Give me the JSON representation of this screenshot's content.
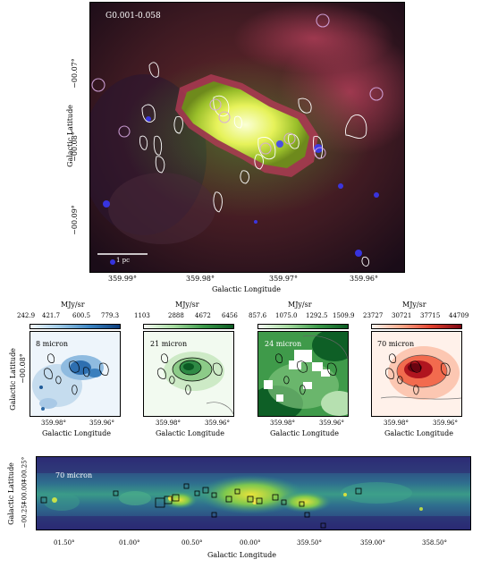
{
  "top_panel": {
    "title": "G0.001-0.058",
    "scale_bar_label": "1 pc",
    "ylabel": "Galactic Latitude",
    "xlabel": "Galactic Longitude",
    "yticks": [
      "−00.07°",
      "−00.08°",
      "−00.09°"
    ],
    "xticks": [
      "359.99°",
      "359.98°",
      "359.97°",
      "359.96°"
    ]
  },
  "middle_panels": {
    "ylabel": "Galactic Latitude",
    "ytick": "−00.08°",
    "unit": "MJy/sr",
    "xticks": [
      "359.98°",
      "359.96°"
    ],
    "xlabel": "Galactic Longitude",
    "panels": [
      {
        "label": "8 micron",
        "ticks": [
          "242.9",
          "421.7",
          "600.5",
          "779.3"
        ],
        "cmap_start": "#f3f8fd",
        "cmap_end": "#0c3d7a"
      },
      {
        "label": "21 micron",
        "ticks": [
          "1103",
          "2888",
          "4672",
          "6456"
        ],
        "cmap_start": "#f5fbf3",
        "cmap_end": "#0b5a23"
      },
      {
        "label": "24 micron",
        "ticks": [
          "857.6",
          "1075.0",
          "1292.5",
          "1509.9"
        ],
        "cmap_start": "#f5fbf3",
        "cmap_end": "#0b5a23"
      },
      {
        "label": "70 micron",
        "ticks": [
          "23727",
          "30721",
          "37715",
          "44709"
        ],
        "cmap_start": "#fff4ee",
        "cmap_end": "#7a0612"
      }
    ]
  },
  "bottom_panel": {
    "label": "70 micron",
    "ylabel": "Galactic Latitude",
    "yticks": [
      "+00.25°",
      "+00.00°",
      "−00.25°"
    ],
    "xticks": [
      "01.50°",
      "01.00°",
      "00.50°",
      "00.00°",
      "359.50°",
      "359.00°",
      "358.50°"
    ],
    "xlabel": "Galactic Longitude"
  }
}
